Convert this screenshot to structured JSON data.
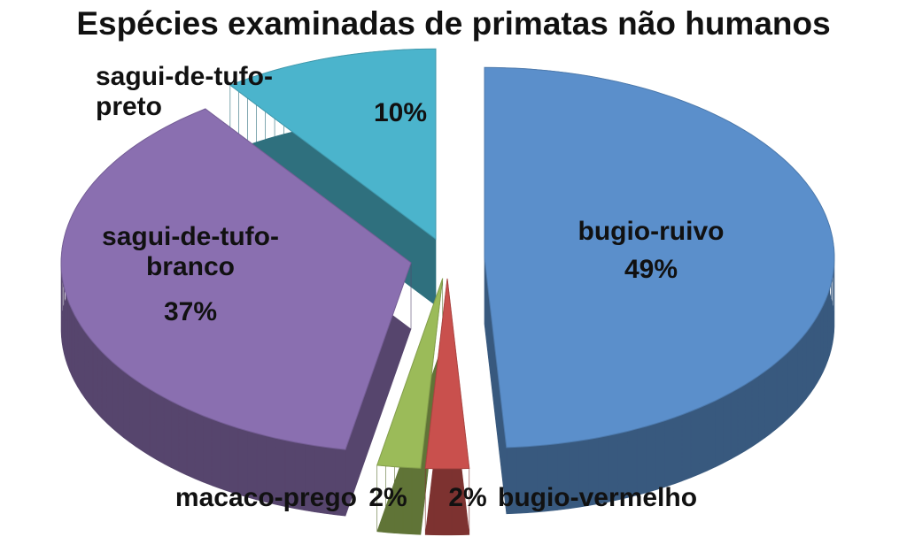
{
  "chart_data": {
    "type": "pie",
    "title": "Espécies examinadas de primatas não humanos",
    "categories": [
      "bugio-ruivo",
      "bugio-vermelho",
      "macaco-prego",
      "sagui-de-tufo-branco",
      "sagui-de-tufo-preto"
    ],
    "values": [
      49,
      2,
      2,
      37,
      10
    ],
    "value_labels": [
      "49%",
      "2%",
      "2%",
      "37%",
      "10%"
    ],
    "colors": [
      "#5b8fcb",
      "#c9504d",
      "#9bbb59",
      "#8a6fb0",
      "#4bb4cc"
    ]
  }
}
